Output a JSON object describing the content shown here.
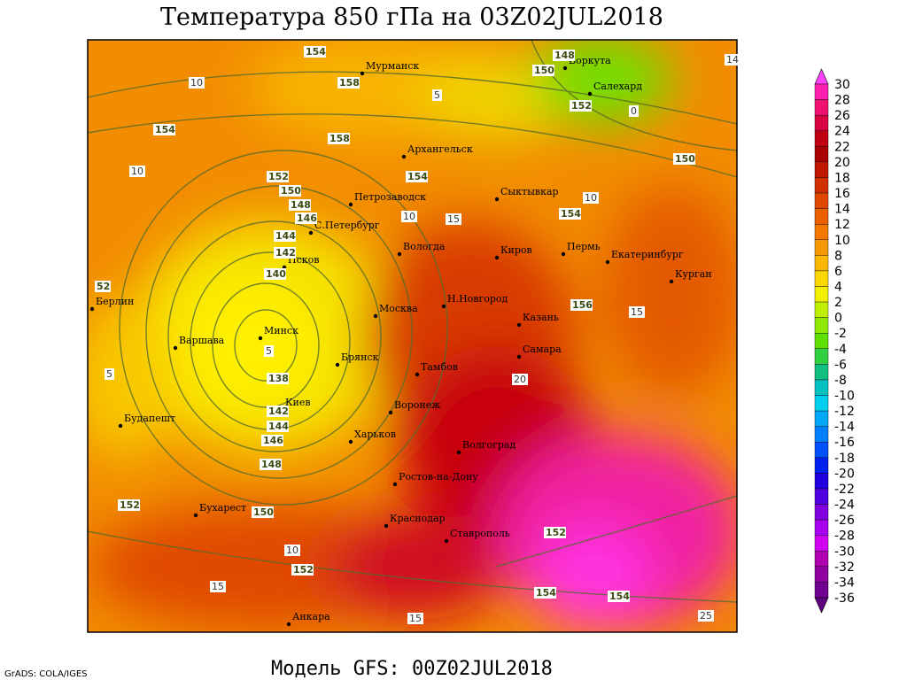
{
  "header": {
    "title": "Температура 850 гПа на 03Z02JUL2018"
  },
  "footer": {
    "model": "Модель GFS: 00Z02JUL2018",
    "credit": "GrADS: COLA/IGES"
  },
  "cities": [
    "Мурманск",
    "Архангельск",
    "Петрозаводск",
    "С.Петербург",
    "Псков",
    "Минск",
    "Варшава",
    "Берлин",
    "Будапешт",
    "Бухарест",
    "Анкара",
    "Киев",
    "Брянск",
    "Москва",
    "Вологда",
    "Тамбов",
    "Воронеж",
    "Харьков",
    "Ростов-на-Дону",
    "Краснодар",
    "Ставрополь",
    "Волгоград",
    "Н.Новгород",
    "Казань",
    "Самара",
    "Киров",
    "Пермь",
    "Екатеринбург",
    "Курган",
    "Сыктывкар",
    "Воркута",
    "Салехард"
  ],
  "contour_labels": [
    154,
    158,
    158,
    154,
    154,
    152,
    150,
    148,
    146,
    144,
    142,
    140,
    138,
    142,
    144,
    146,
    148,
    150,
    152,
    152,
    154,
    150,
    152,
    148,
    150,
    156,
    152,
    154,
    154,
    52
  ],
  "temperature_labels": [
    10,
    10,
    10,
    10,
    15,
    15,
    15,
    15,
    20,
    5,
    5,
    5,
    0,
    14,
    25,
    10
  ],
  "colorbar": {
    "levels": [
      30,
      28,
      26,
      24,
      22,
      20,
      18,
      16,
      14,
      12,
      10,
      8,
      6,
      4,
      2,
      0,
      -2,
      -4,
      -6,
      -8,
      -10,
      -12,
      -14,
      -16,
      -18,
      -20,
      -22,
      -24,
      -26,
      -28,
      -30,
      -32,
      -34,
      -36
    ],
    "colors": [
      "#ff40ff",
      "#ff20b0",
      "#f01070",
      "#d80040",
      "#c00010",
      "#a80000",
      "#c01800",
      "#d03000",
      "#e04800",
      "#ec6000",
      "#f47800",
      "#f89800",
      "#fcb800",
      "#fcd800",
      "#f0f000",
      "#c0f000",
      "#90e800",
      "#60e000",
      "#30d040",
      "#10c080",
      "#00c0c0",
      "#00d0f0",
      "#00a8f8",
      "#0080ff",
      "#0050ff",
      "#0020f0",
      "#2000e0",
      "#5000e0",
      "#8000e0",
      "#a800f0",
      "#d000f0",
      "#b000b0",
      "#9000a0",
      "#700090",
      "#600080"
    ]
  }
}
